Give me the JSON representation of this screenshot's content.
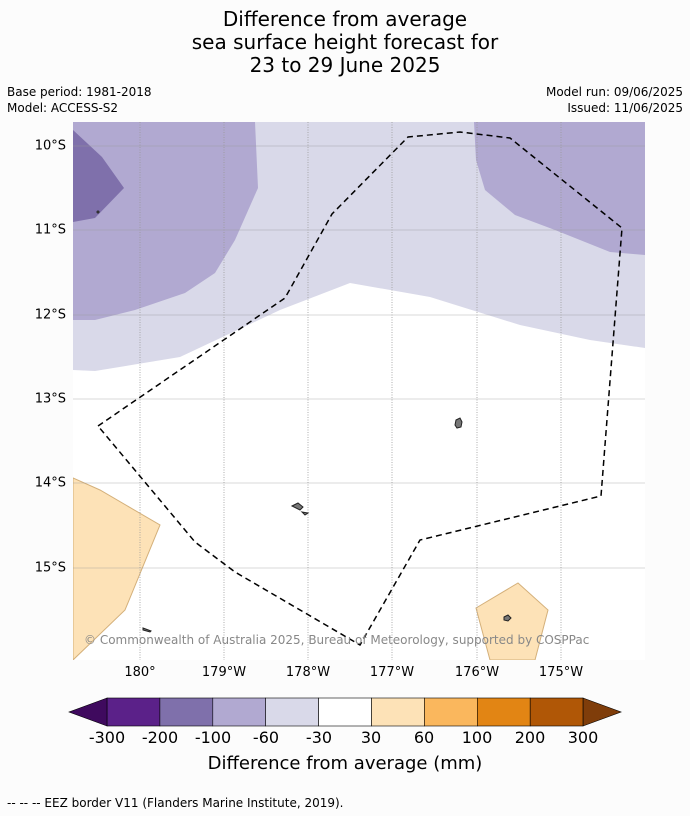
{
  "title": {
    "line1": "Difference from average",
    "line2": "sea surface height forecast for",
    "line3": "23 to 29 June 2025"
  },
  "meta": {
    "base_period": "Base period: 1981-2018",
    "model": "Model: ACCESS-S2",
    "model_run": "Model run: 09/06/2025",
    "issued": "Issued: 11/06/2025"
  },
  "map": {
    "latitude_labels": [
      "10°S",
      "11°S",
      "12°S",
      "13°S",
      "14°S",
      "15°S"
    ],
    "longitude_labels": [
      "180°",
      "179°W",
      "178°W",
      "177°W",
      "176°W",
      "175°W"
    ],
    "copyright": "© Commonwealth of Australia 2025, Bureau of Meteorology, supported by COSPPac",
    "colors": {
      "lt_-300": "#3f0a5e",
      "-300_-200": "#5b2189",
      "-200_-100": "#7f70ab",
      "-100_-60": "#b1a9d1",
      "-60_-30": "#d9d9e9",
      "-30_30": "#ffffff",
      "30_60": "#fde2b7",
      "60_100": "#fab75d",
      "100_200": "#e28514",
      "200_300": "#b05706",
      "gt_300": "#7f3d0a"
    }
  },
  "colorbar": {
    "ticks": [
      "-300",
      "-200",
      "-100",
      "-60",
      "-30",
      "30",
      "60",
      "100",
      "200",
      "300"
    ],
    "label": "Difference from average (mm)"
  },
  "footnote": "--  --  -- EEZ border V11 (Flanders Marine Institute, 2019)."
}
